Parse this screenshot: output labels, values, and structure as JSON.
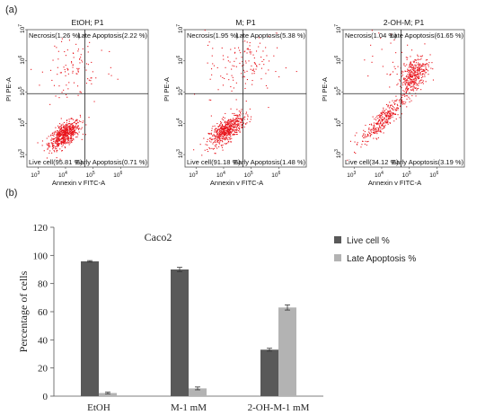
{
  "panel_a_label": "(a)",
  "panel_b_label": "(b)",
  "flow_xlabel": "Annexin v FITC-A",
  "flow_ylabel": "PI PE-A",
  "flow_ticks": [
    {
      "base": "10",
      "exp": "3"
    },
    {
      "base": "10",
      "exp": "4"
    },
    {
      "base": "10",
      "exp": "5"
    },
    {
      "base": "10",
      "exp": "6"
    },
    {
      "base": "10",
      "exp": "7"
    }
  ],
  "flow_plots": [
    {
      "title": "EtOH; P1",
      "necrosis": "Necrosis(1.26 %)",
      "late": "Late Apoptosis(2.22 %)",
      "live": "Live cell(95.81 %)",
      "early": "Early Apoptosis(0.71 %)",
      "dot_color": "#e8141c"
    },
    {
      "title": "M; P1",
      "necrosis": "Necrosis(1.95 %)",
      "late": "Late Apoptosis(5.38 %)",
      "live": "Live cell(91.18 %)",
      "early": "Early Apoptosis(1.48 %)",
      "dot_color": "#e8141c"
    },
    {
      "title": "2-OH-M; P1",
      "necrosis": "Necrosis(1.04 %)",
      "late": "Late Apoptosis(61.65 %)",
      "live": "Live cell(34.12 %)",
      "early": "Early Apoptosis(3.19 %)",
      "dot_color": "#e8141c"
    }
  ],
  "chart_data": {
    "type": "bar",
    "title": "Caco2",
    "ylabel": "Percentage of cells",
    "xlabel": "",
    "categories": [
      "EtOH",
      "M-1 mM",
      "2-OH-M-1 mM"
    ],
    "ylim": [
      0,
      120
    ],
    "yticks": [
      0,
      20,
      40,
      60,
      80,
      100,
      120
    ],
    "legend_position": "top-right",
    "series": [
      {
        "name": "Live cell %",
        "values": [
          95.8,
          90,
          33
        ],
        "errors": [
          0.5,
          1.5,
          1
        ],
        "color": "#595959"
      },
      {
        "name": "Late Apoptosis %",
        "values": [
          2.2,
          5.5,
          63
        ],
        "errors": [
          0.6,
          1,
          1.8
        ],
        "color": "#b3b3b3"
      }
    ]
  }
}
